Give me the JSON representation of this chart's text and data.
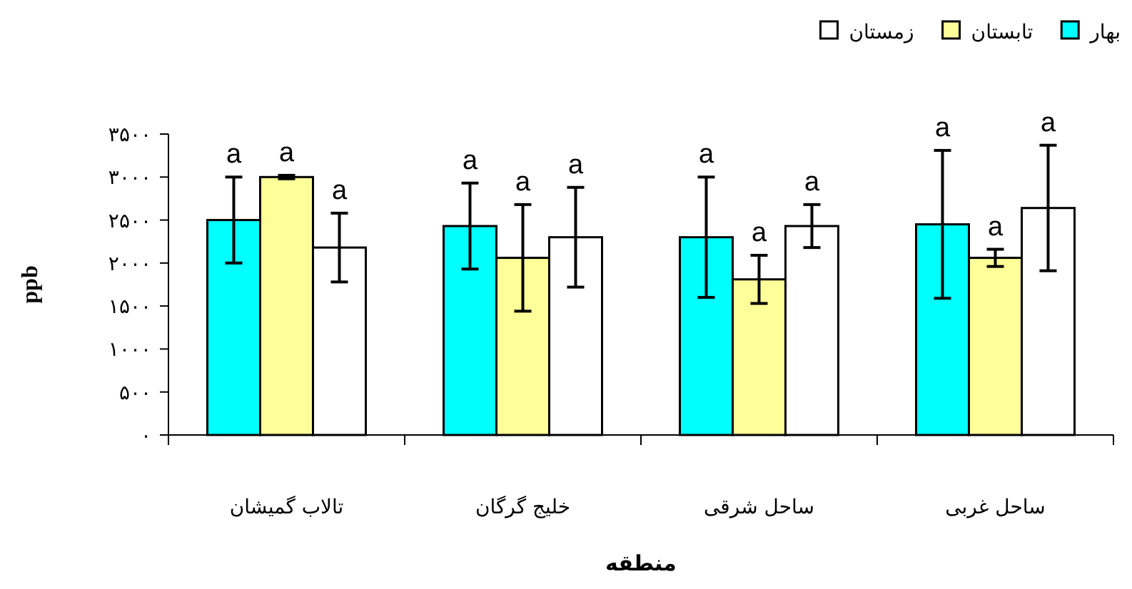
{
  "chart_data": {
    "type": "bar",
    "xlabel": "منطقه",
    "ylabel": "ppb",
    "categories": [
      "تالاب گمیشان",
      "خلیج گرگان",
      "ساحل شرقی",
      "ساحل غربی"
    ],
    "series": [
      {
        "name": "بهار",
        "color": "#00ffff",
        "values": [
          2500,
          2430,
          2300,
          2450
        ],
        "errors": [
          500,
          500,
          700,
          860
        ],
        "value_labels": [
          "a",
          "a",
          "a",
          "a"
        ]
      },
      {
        "name": "تابستان",
        "color": "#ffff99",
        "values": [
          3000,
          2060,
          1810,
          2060
        ],
        "errors": [
          20,
          620,
          280,
          100
        ],
        "value_labels": [
          "a",
          "a",
          "a",
          "a"
        ]
      },
      {
        "name": "زمستان",
        "color": "#ffffff",
        "values": [
          2180,
          2300,
          2430,
          2640
        ],
        "errors": [
          400,
          580,
          250,
          730
        ],
        "value_labels": [
          "a",
          "a",
          "a",
          "a"
        ]
      }
    ],
    "ylim": [
      0,
      3500
    ],
    "yticks": [
      {
        "value": 0,
        "label": "۰"
      },
      {
        "value": 500,
        "label": "۵۰۰"
      },
      {
        "value": 1000,
        "label": "۱۰۰۰"
      },
      {
        "value": 1500,
        "label": "۱۵۰۰"
      },
      {
        "value": 2000,
        "label": "۲۰۰۰"
      },
      {
        "value": 2500,
        "label": "۲۵۰۰"
      },
      {
        "value": 3000,
        "label": "۳۰۰۰"
      },
      {
        "value": 3500,
        "label": "۳۵۰۰"
      }
    ],
    "grid": false,
    "legend": "top right"
  }
}
